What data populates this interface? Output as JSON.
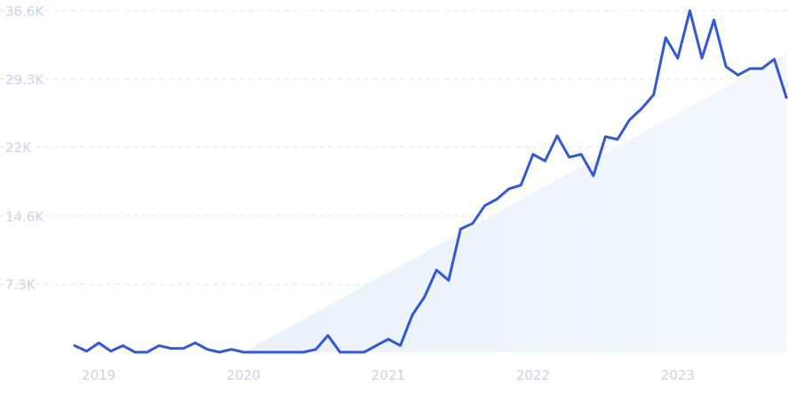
{
  "chart_data": {
    "type": "line",
    "title": "",
    "xlabel": "",
    "ylabel": "",
    "ylim": [
      0,
      36600
    ],
    "xlim": [
      "2018-10",
      "2023-10"
    ],
    "grid": true,
    "y_ticks": [
      {
        "value": 7300,
        "label": "7.3K"
      },
      {
        "value": 14600,
        "label": "14.6K"
      },
      {
        "value": 22000,
        "label": "22K"
      },
      {
        "value": 29300,
        "label": "29.3K"
      },
      {
        "value": 36600,
        "label": "36.6K"
      }
    ],
    "x_ticks": [
      {
        "value": "2019-01",
        "label": "2019"
      },
      {
        "value": "2020-01",
        "label": "2020"
      },
      {
        "value": "2021-01",
        "label": "2021"
      },
      {
        "value": "2022-01",
        "label": "2022"
      },
      {
        "value": "2023-01",
        "label": "2023"
      }
    ],
    "colors": {
      "line": "#3358d4",
      "trend_fill": "#e6effb",
      "tick_label": "#c9d2ea"
    },
    "series": [
      {
        "x": [
          "2018-11",
          "2018-12",
          "2019-01",
          "2019-02",
          "2019-03",
          "2019-04",
          "2019-05",
          "2019-06",
          "2019-07",
          "2019-08",
          "2019-09",
          "2019-10",
          "2019-11",
          "2019-12",
          "2020-01",
          "2020-02",
          "2020-03",
          "2020-04",
          "2020-05",
          "2020-06",
          "2020-07",
          "2020-08",
          "2020-09",
          "2020-10",
          "2020-11",
          "2020-12",
          "2021-01",
          "2021-02",
          "2021-03",
          "2021-04",
          "2021-05",
          "2021-06",
          "2021-07",
          "2021-08",
          "2021-09",
          "2021-10",
          "2021-11",
          "2021-12",
          "2022-01",
          "2022-02",
          "2022-03",
          "2022-04",
          "2022-05",
          "2022-06",
          "2022-07",
          "2022-08",
          "2022-09",
          "2022-10",
          "2022-11",
          "2022-12",
          "2023-01",
          "2023-02",
          "2023-03",
          "2023-04",
          "2023-05",
          "2023-06",
          "2023-07",
          "2023-08",
          "2023-09",
          "2023-10"
        ],
        "values": [
          700,
          100,
          1000,
          100,
          700,
          0,
          0,
          700,
          400,
          400,
          1000,
          300,
          0,
          300,
          0,
          0,
          0,
          0,
          0,
          0,
          300,
          1800,
          0,
          0,
          0,
          700,
          1400,
          700,
          4000,
          5900,
          8800,
          7700,
          13200,
          13800,
          15700,
          16400,
          17500,
          17900,
          21200,
          20500,
          23200,
          20900,
          21200,
          18900,
          23100,
          22800,
          24900,
          26100,
          27600,
          33700,
          31500,
          36600,
          31500,
          35600,
          30600,
          29700,
          30400,
          30400,
          31400,
          27300
        ]
      }
    ],
    "trend": {
      "x": [
        "2020-01",
        "2023-10"
      ],
      "values": [
        0,
        32000
      ]
    }
  }
}
